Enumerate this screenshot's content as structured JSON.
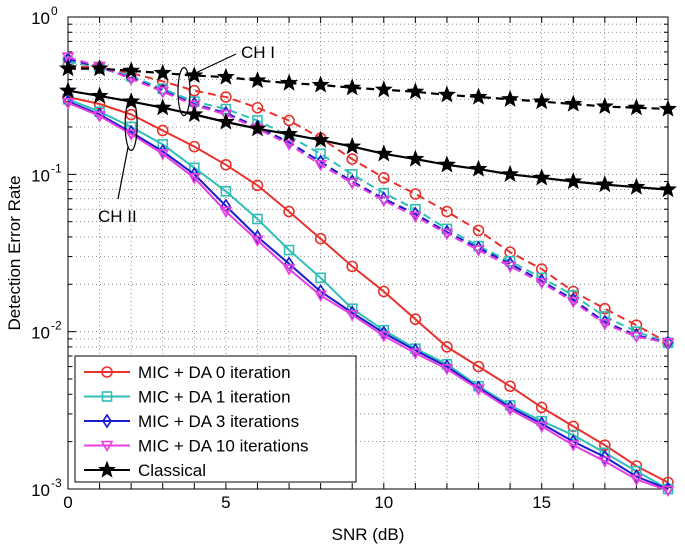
{
  "chart_data": {
    "type": "line",
    "title": "",
    "xlabel": "SNR (dB)",
    "ylabel": "Detection Error Rate",
    "xlim": [
      0,
      19
    ],
    "ylim": [
      0.001,
      1
    ],
    "yscale": "log",
    "grid": true,
    "x_ticks": [
      0,
      5,
      10,
      15
    ],
    "y_ticks": [
      {
        "value": 1,
        "base": "10",
        "exp": "0"
      },
      {
        "value": 0.1,
        "base": "10",
        "exp": "-1"
      },
      {
        "value": 0.01,
        "base": "10",
        "exp": "-2"
      },
      {
        "value": 0.001,
        "base": "10",
        "exp": "-3"
      }
    ],
    "x": [
      0,
      1,
      2,
      3,
      4,
      5,
      6,
      7,
      8,
      9,
      10,
      11,
      12,
      13,
      14,
      15,
      16,
      17,
      18,
      19
    ],
    "legend_position": "bottom-left",
    "series": [
      {
        "name": "MIC + DA 0 iteration",
        "channel": "CH I",
        "color": "#e8322d",
        "marker": "circle",
        "dash": true,
        "values": [
          0.49,
          0.475,
          0.44,
          0.39,
          0.34,
          0.31,
          0.265,
          0.22,
          0.17,
          0.125,
          0.095,
          0.075,
          0.058,
          0.044,
          0.032,
          0.025,
          0.018,
          0.014,
          0.011,
          0.0085
        ]
      },
      {
        "name": "MIC + DA 1 iteration",
        "channel": "CH I",
        "color": "#2fbfb8",
        "marker": "square",
        "dash": true,
        "values": [
          0.52,
          0.48,
          0.42,
          0.35,
          0.29,
          0.26,
          0.22,
          0.175,
          0.135,
          0.1,
          0.076,
          0.06,
          0.045,
          0.035,
          0.028,
          0.022,
          0.017,
          0.0125,
          0.01,
          0.0085
        ]
      },
      {
        "name": "MIC + DA 3 iterations",
        "channel": "CH I",
        "color": "#1a1ad0",
        "marker": "diamond",
        "dash": true,
        "values": [
          0.54,
          0.48,
          0.41,
          0.34,
          0.28,
          0.245,
          0.2,
          0.16,
          0.12,
          0.09,
          0.07,
          0.056,
          0.043,
          0.034,
          0.027,
          0.021,
          0.016,
          0.0115,
          0.0095,
          0.0085
        ]
      },
      {
        "name": "MIC + DA 10 iterations",
        "channel": "CH I",
        "color": "#e83fe0",
        "marker": "triangle-down",
        "dash": true,
        "values": [
          0.555,
          0.485,
          0.405,
          0.335,
          0.275,
          0.24,
          0.195,
          0.155,
          0.115,
          0.088,
          0.068,
          0.054,
          0.042,
          0.033,
          0.026,
          0.0205,
          0.0155,
          0.0112,
          0.0093,
          0.0085
        ]
      },
      {
        "name": "Classical",
        "channel": "CH I",
        "color": "#000000",
        "marker": "star",
        "dash": true,
        "values": [
          0.47,
          0.47,
          0.455,
          0.44,
          0.425,
          0.415,
          0.395,
          0.38,
          0.37,
          0.355,
          0.345,
          0.335,
          0.32,
          0.31,
          0.3,
          0.29,
          0.28,
          0.27,
          0.265,
          0.26
        ]
      },
      {
        "name": "MIC + DA 0 iteration",
        "channel": "CH II",
        "color": "#e8322d",
        "marker": "circle",
        "dash": false,
        "values": [
          0.31,
          0.28,
          0.24,
          0.19,
          0.15,
          0.115,
          0.085,
          0.058,
          0.039,
          0.026,
          0.018,
          0.012,
          0.008,
          0.006,
          0.0045,
          0.0033,
          0.0025,
          0.0019,
          0.0014,
          0.0011
        ]
      },
      {
        "name": "MIC + DA 1 iteration",
        "channel": "CH II",
        "color": "#2fbfb8",
        "marker": "square",
        "dash": false,
        "values": [
          0.3,
          0.25,
          0.2,
          0.155,
          0.11,
          0.078,
          0.052,
          0.033,
          0.022,
          0.014,
          0.0102,
          0.0078,
          0.0062,
          0.0045,
          0.0034,
          0.0027,
          0.0022,
          0.0017,
          0.0013,
          0.001
        ]
      },
      {
        "name": "MIC + DA 3 iterations",
        "channel": "CH II",
        "color": "#1a1ad0",
        "marker": "diamond",
        "dash": false,
        "values": [
          0.29,
          0.24,
          0.185,
          0.14,
          0.1,
          0.063,
          0.04,
          0.027,
          0.018,
          0.0132,
          0.0098,
          0.0076,
          0.006,
          0.0044,
          0.0033,
          0.0026,
          0.002,
          0.0016,
          0.0012,
          0.001
        ]
      },
      {
        "name": "MIC + DA 10 iterations",
        "channel": "CH II",
        "color": "#e83fe0",
        "marker": "triangle-down",
        "dash": false,
        "values": [
          0.285,
          0.235,
          0.18,
          0.135,
          0.095,
          0.058,
          0.038,
          0.025,
          0.017,
          0.0128,
          0.0094,
          0.0073,
          0.0058,
          0.0043,
          0.0032,
          0.0025,
          0.0019,
          0.0015,
          0.00115,
          0.00098
        ]
      },
      {
        "name": "Classical",
        "channel": "CH II",
        "color": "#000000",
        "marker": "star",
        "dash": false,
        "values": [
          0.34,
          0.315,
          0.29,
          0.265,
          0.24,
          0.215,
          0.195,
          0.18,
          0.165,
          0.15,
          0.135,
          0.125,
          0.115,
          0.108,
          0.1,
          0.095,
          0.09,
          0.086,
          0.083,
          0.08
        ]
      }
    ],
    "legend": [
      {
        "label": "MIC + DA 0 iteration",
        "color": "#e8322d",
        "marker": "circle"
      },
      {
        "label": "MIC + DA 1 iteration",
        "color": "#2fbfb8",
        "marker": "square"
      },
      {
        "label": "MIC + DA 3 iterations",
        "color": "#1a1ad0",
        "marker": "diamond"
      },
      {
        "label": "MIC + DA 10 iterations",
        "color": "#e83fe0",
        "marker": "triangle-down"
      },
      {
        "label": "Classical",
        "color": "#000000",
        "marker": "star"
      }
    ],
    "annotations": [
      {
        "text": "CH I",
        "target_x": 3.8,
        "target_y": 0.4
      },
      {
        "text": "CH II",
        "target_x": 2.0,
        "target_y": 0.19
      }
    ]
  }
}
